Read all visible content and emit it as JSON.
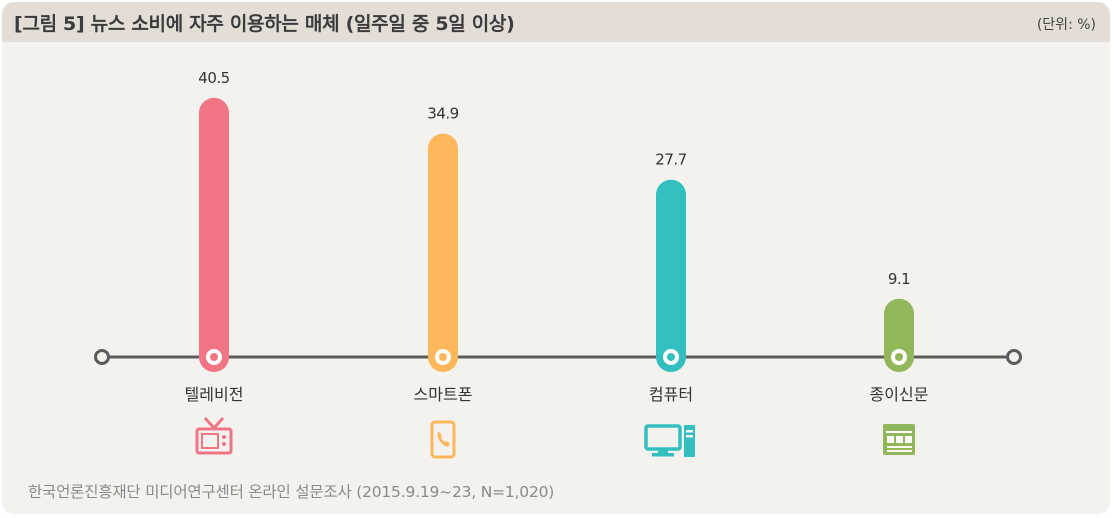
{
  "header": {
    "title": "[그림 5]  뉴스 소비에 자주 이용하는 매체 (일주일 중 5일 이상)",
    "unit": "(단위: %)"
  },
  "source": "한국언론진흥재단 미디어연구센터 온라인 설문조사 (2015.9.19~23, N=1,020)",
  "colors": {
    "axis": "#5b5b5b",
    "bars": [
      "#f17584",
      "#fdb75b",
      "#33bfc0",
      "#92b65a"
    ]
  },
  "chart_data": {
    "type": "bar",
    "title": "[그림 5]  뉴스 소비에 자주 이용하는 매체 (일주일 중 5일 이상)",
    "xlabel": "",
    "ylabel": "",
    "unit": "%",
    "categories": [
      "텔레비전",
      "스마트폰",
      "컴퓨터",
      "종이신문"
    ],
    "values": [
      40.5,
      34.9,
      27.7,
      9.1
    ],
    "value_labels": [
      "40.5",
      "34.9",
      "27.7",
      "9.1"
    ],
    "icons": [
      "tv-icon",
      "smartphone-icon",
      "computer-icon",
      "newspaper-icon"
    ],
    "ylim": [
      0,
      45
    ],
    "grid": false,
    "legend": "none"
  }
}
